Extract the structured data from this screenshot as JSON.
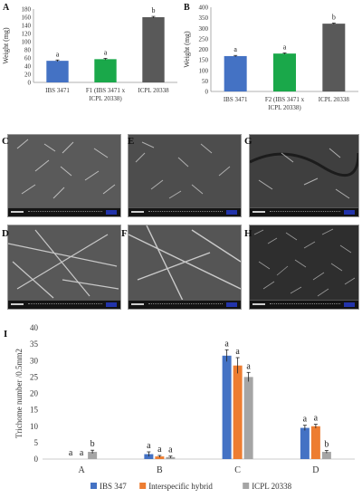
{
  "chart_data": [
    {
      "panel": "A",
      "type": "bar",
      "categories": [
        "IBS 3471",
        "F1 (IBS 3471 x ICPL 20338)",
        "ICPL 20338"
      ],
      "category_lines": [
        [
          "IBS 3471"
        ],
        [
          "F1 (IBS 3471 x",
          "ICPL 20338)"
        ],
        [
          "ICPL 20338"
        ]
      ],
      "values": [
        53,
        57,
        160
      ],
      "errors": [
        2,
        2,
        2
      ],
      "letters": [
        "a",
        "a",
        "b"
      ],
      "colors": [
        "#4472c4",
        "#1aa84a",
        "#595959"
      ],
      "ylabel": "Weight (mg)",
      "ylim": [
        0,
        180
      ],
      "yticks": [
        0,
        20,
        40,
        60,
        80,
        100,
        120,
        140,
        160,
        180
      ]
    },
    {
      "panel": "B",
      "type": "bar",
      "categories": [
        "IBS 3471",
        "F2 (IBS 3471 x ICPL 20338)",
        "ICPL 20338"
      ],
      "category_lines": [
        [
          "IBS 3471"
        ],
        [
          "F2 (IBS 3471 x",
          "ICPL 20338)"
        ],
        [
          "ICPL 20338"
        ]
      ],
      "values": [
        168,
        180,
        322
      ],
      "errors": [
        3,
        3,
        3
      ],
      "letters": [
        "a",
        "a",
        "b"
      ],
      "colors": [
        "#4472c4",
        "#1aa84a",
        "#595959"
      ],
      "ylabel": "Weight (mg)",
      "ylim": [
        0,
        400
      ],
      "yticks": [
        0,
        50,
        100,
        150,
        200,
        250,
        300,
        350,
        400
      ]
    },
    {
      "panel": "I",
      "type": "bar",
      "categories": [
        "A",
        "B",
        "C",
        "D"
      ],
      "ylabel": "Trichome number /0.5mm2",
      "ylim": [
        0,
        40
      ],
      "yticks": [
        0,
        5,
        10,
        15,
        20,
        25,
        30,
        35,
        40
      ],
      "series": [
        {
          "name": "IBS 347",
          "color": "#4472c4",
          "values": [
            0,
            1.5,
            31.5,
            9.5
          ],
          "errors": [
            0,
            0.7,
            1.8,
            0.8
          ],
          "letters": [
            "a",
            "a",
            "a",
            "a"
          ]
        },
        {
          "name": "Interspecific hybrid",
          "color": "#ed7d31",
          "values": [
            0,
            0.8,
            28.5,
            10
          ],
          "errors": [
            0,
            0.3,
            2.4,
            0.6
          ],
          "letters": [
            "a",
            "a",
            "a",
            "a"
          ]
        },
        {
          "name": "ICPL 20338",
          "color": "#a5a5a5",
          "values": [
            2.2,
            0.6,
            25,
            2.2
          ],
          "errors": [
            0.5,
            0.3,
            1.4,
            0.4
          ],
          "letters": [
            "b",
            "a",
            "a",
            "b"
          ]
        }
      ],
      "legend": "bottom"
    }
  ],
  "panels": {
    "c": "C",
    "d": "D",
    "e": "E",
    "f": "F",
    "g": "G",
    "h": "H"
  },
  "colors": {
    "blue": "#4472c4",
    "green": "#1aa84a",
    "dark_gray": "#595959",
    "orange": "#ed7d31",
    "light_gray": "#a5a5a5"
  }
}
